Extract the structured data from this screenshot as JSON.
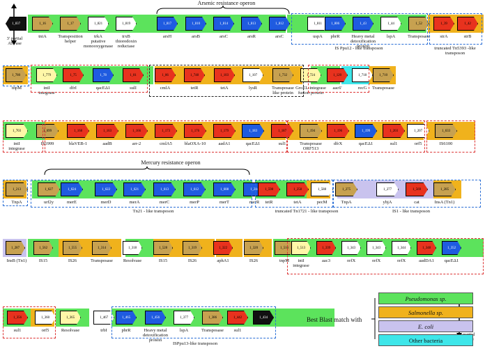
{
  "colors": {
    "pseudomonas": "#5ce35c",
    "salmonella": "#f0b21c",
    "ecoli": "#c9c3ee",
    "other": "#3ee6e9",
    "gene_red": "#e8321e",
    "gene_blue": "#1f5be0",
    "gene_white": "#ffffff",
    "gene_khaki": "#c7a150",
    "gene_black": "#111111",
    "gene_yellow": "#fff7a8",
    "box_red": "#dd3333",
    "box_blue": "#2b6fd6"
  },
  "titles": {
    "arsenic": "Arsenic resistance operon",
    "mercury": "Mercury resistance operon"
  },
  "legend": {
    "title": "Best Blast match with",
    "items": [
      "Pseudomonas sp.",
      "Salmonella sp.",
      "E. coli",
      "Other bacteria"
    ]
  },
  "end_labels": {
    "top": "3' partial\nATPase",
    "bottom": "5'-partial\nATPase"
  },
  "rows": [
    {
      "genes": [
        {
          "id": "1_837",
          "c": "gene_black",
          "rev": true
        },
        {
          "id": "1_16",
          "c": "gene_khaki"
        },
        {
          "id": "1_17",
          "c": "gene_khaki"
        },
        {
          "id": "1_821",
          "c": "gene_white"
        },
        {
          "id": "1_819",
          "c": "gene_white"
        },
        {
          "id": "1_817",
          "c": "gene_blue"
        },
        {
          "id": "1_810",
          "c": "gene_blue"
        },
        {
          "id": "1_814",
          "c": "gene_blue"
        },
        {
          "id": "1_813",
          "c": "gene_blue"
        },
        {
          "id": "1_812",
          "c": "gene_blue"
        },
        {
          "id": "1_811",
          "c": "gene_white"
        },
        {
          "id": "1_806",
          "c": "gene_blue"
        },
        {
          "id": "1_43",
          "c": "gene_blue"
        },
        {
          "id": "1_44",
          "c": "gene_white"
        },
        {
          "id": "1_52",
          "c": "gene_khaki"
        },
        {
          "id": "1_39",
          "c": "gene_red"
        },
        {
          "id": "1_42",
          "c": "gene_red"
        }
      ],
      "labels": [
        "",
        "tniA",
        "Transposition\nhelper",
        "trkA\nputative\nmonooxygenase",
        "trxB\nthioredoxin\nreductase",
        "arsH",
        "arsB",
        "arsC",
        "arsR",
        "arsC",
        "uspA",
        "pbrR",
        "Heavy metal\ndetoxification protein",
        "lspA",
        "Transposase",
        "strA",
        "strB"
      ],
      "groups": [
        "IS Ppu12 - like transposon",
        "truncated Tn5393 -like\ntransposon"
      ]
    },
    {
      "genes": [
        {
          "id": "1_780",
          "c": "gene_khaki"
        },
        {
          "id": "1_779",
          "c": "gene_yellow"
        },
        {
          "id": "1_75",
          "c": "gene_red"
        },
        {
          "id": "1_78",
          "c": "gene_blue"
        },
        {
          "id": "1_81",
          "c": "gene_red"
        },
        {
          "id": "1_86",
          "c": "gene_red"
        },
        {
          "id": "1_748",
          "c": "gene_red"
        },
        {
          "id": "1_103",
          "c": "gene_red"
        },
        {
          "id": "1_107",
          "c": "gene_white"
        },
        {
          "id": "1_732",
          "c": "gene_khaki"
        },
        {
          "id": "1_724",
          "c": "gene_yellow"
        },
        {
          "id": "1_120",
          "c": "gene_red"
        },
        {
          "id": "1_718",
          "c": "gene_white"
        },
        {
          "id": "1_710",
          "c": "gene_khaki"
        }
      ],
      "labels": [
        "tnpM",
        "intI\nintegrase",
        "dfrI",
        "qacEΔ1",
        "sulI",
        "cmlA",
        "tetR",
        "tetA",
        "lysR",
        "Transposase\nlike protein",
        "GroEL-integrase\nfusion protein",
        "aac6'",
        "recG",
        "Transposase"
      ]
    },
    {
      "genes": [
        {
          "id": "1_703",
          "c": "gene_yellow"
        },
        {
          "id": "1_699",
          "c": "gene_khaki"
        },
        {
          "id": "1_168",
          "c": "gene_red"
        },
        {
          "id": "1_163",
          "c": "gene_red"
        },
        {
          "id": "1_166",
          "c": "gene_red"
        },
        {
          "id": "1_173",
          "c": "gene_red"
        },
        {
          "id": "1_176",
          "c": "gene_red"
        },
        {
          "id": "1_179",
          "c": "gene_red"
        },
        {
          "id": "1_183",
          "c": "gene_blue"
        },
        {
          "id": "1_187",
          "c": "gene_red"
        },
        {
          "id": "1_194",
          "c": "gene_khaki"
        },
        {
          "id": "1_196",
          "c": "gene_red"
        },
        {
          "id": "1_199",
          "c": "gene_blue"
        },
        {
          "id": "1_203",
          "c": "gene_red"
        },
        {
          "id": "1_207",
          "c": "gene_white"
        },
        {
          "id": "1_633",
          "c": "gene_khaki"
        }
      ],
      "labels": [
        "intI\nintegrase",
        "IS1999",
        "blaVEB-1",
        "aadB",
        "arr-2",
        "cmlA5",
        "blaOXA-10",
        "aadA1",
        "qacEΔ1",
        "sul1",
        "Transposase\nORF513",
        "dfrX",
        "qacEΔ1",
        "sul1",
        "orf5",
        "IS6100"
      ]
    },
    {
      "genes": [
        {
          "id": "1_213",
          "c": "gene_khaki"
        },
        {
          "id": "1_627",
          "c": "gene_khaki"
        },
        {
          "id": "1_624",
          "c": "gene_blue"
        },
        {
          "id": "1_622",
          "c": "gene_blue"
        },
        {
          "id": "1_621",
          "c": "gene_blue"
        },
        {
          "id": "1_613",
          "c": "gene_blue"
        },
        {
          "id": "1_612",
          "c": "gene_blue"
        },
        {
          "id": "1_608",
          "c": "gene_blue"
        },
        {
          "id": "1_244",
          "c": "gene_blue"
        },
        {
          "id": "1_598",
          "c": "gene_red"
        },
        {
          "id": "1_258",
          "c": "gene_red"
        },
        {
          "id": "1_588",
          "c": "gene_white"
        },
        {
          "id": "1_275",
          "c": "gene_khaki"
        },
        {
          "id": "1_277",
          "c": "gene_white"
        },
        {
          "id": "1_569",
          "c": "gene_red"
        },
        {
          "id": "1_285",
          "c": "gene_khaki"
        }
      ],
      "labels": [
        "TnpA",
        "urf2y",
        "merE",
        "merD",
        "merA",
        "merC",
        "merP",
        "merT",
        "merR",
        "tetR",
        "tetA",
        "pecM",
        "TnpA",
        "ybjA",
        "cat",
        "InsA (Tn1)"
      ],
      "groups": [
        "Tn21 - like transposon",
        "truncated Tn1721 - like transposon",
        "IS1 - like transposon"
      ]
    },
    {
      "genes": [
        {
          "id": "1_287",
          "c": "gene_khaki"
        },
        {
          "id": "1_562",
          "c": "gene_khaki"
        },
        {
          "id": "1_555",
          "c": "gene_khaki"
        },
        {
          "id": "1_314",
          "c": "gene_khaki"
        },
        {
          "id": "1_318",
          "c": "gene_white"
        },
        {
          "id": "1_528",
          "c": "gene_khaki"
        },
        {
          "id": "1_319",
          "c": "gene_khaki"
        },
        {
          "id": "1_322",
          "c": "gene_red"
        },
        {
          "id": "1_320",
          "c": "gene_khaki"
        },
        {
          "id": "1_516",
          "c": "gene_khaki"
        },
        {
          "id": "1_513",
          "c": "gene_yellow"
        },
        {
          "id": "1_339",
          "c": "gene_red"
        },
        {
          "id": "1_343",
          "c": "gene_white"
        },
        {
          "id": "1_343",
          "c": "gene_white"
        },
        {
          "id": "1_344",
          "c": "gene_white"
        },
        {
          "id": "1_348",
          "c": "gene_red"
        },
        {
          "id": "1_352",
          "c": "gene_blue"
        }
      ],
      "labels": [
        "InsB (Tn1)",
        "IS15",
        "IS26",
        "Transposase",
        "Resolvase",
        "IS15",
        "IS26",
        "aphA1",
        "IS26",
        "tnpM",
        "intI\nintegrase",
        "aac3",
        "orfX",
        "orfX",
        "orfX",
        "aadDA1",
        "qacEΔ1"
      ]
    },
    {
      "genes": [
        {
          "id": "1_356",
          "c": "gene_red"
        },
        {
          "id": "1_360",
          "c": "gene_white"
        },
        {
          "id": "1_365",
          "c": "gene_yellow"
        },
        {
          "id": "1_467",
          "c": "gene_white"
        },
        {
          "id": "1_465",
          "c": "gene_blue"
        },
        {
          "id": "1_456",
          "c": "gene_blue"
        },
        {
          "id": "1_377",
          "c": "gene_white"
        },
        {
          "id": "1_386",
          "c": "gene_khaki"
        },
        {
          "id": "1_442",
          "c": "gene_red"
        },
        {
          "id": "1_434",
          "c": "gene_black"
        }
      ],
      "labels": [
        "sul1",
        "orf5",
        "Resolvase",
        "trbI",
        "pbrR",
        "Heavy metal\ndetoxification protein",
        "lspA",
        "Transposase",
        "sul1",
        ""
      ],
      "groups": [
        "ISPpu13-like transposon"
      ]
    }
  ]
}
